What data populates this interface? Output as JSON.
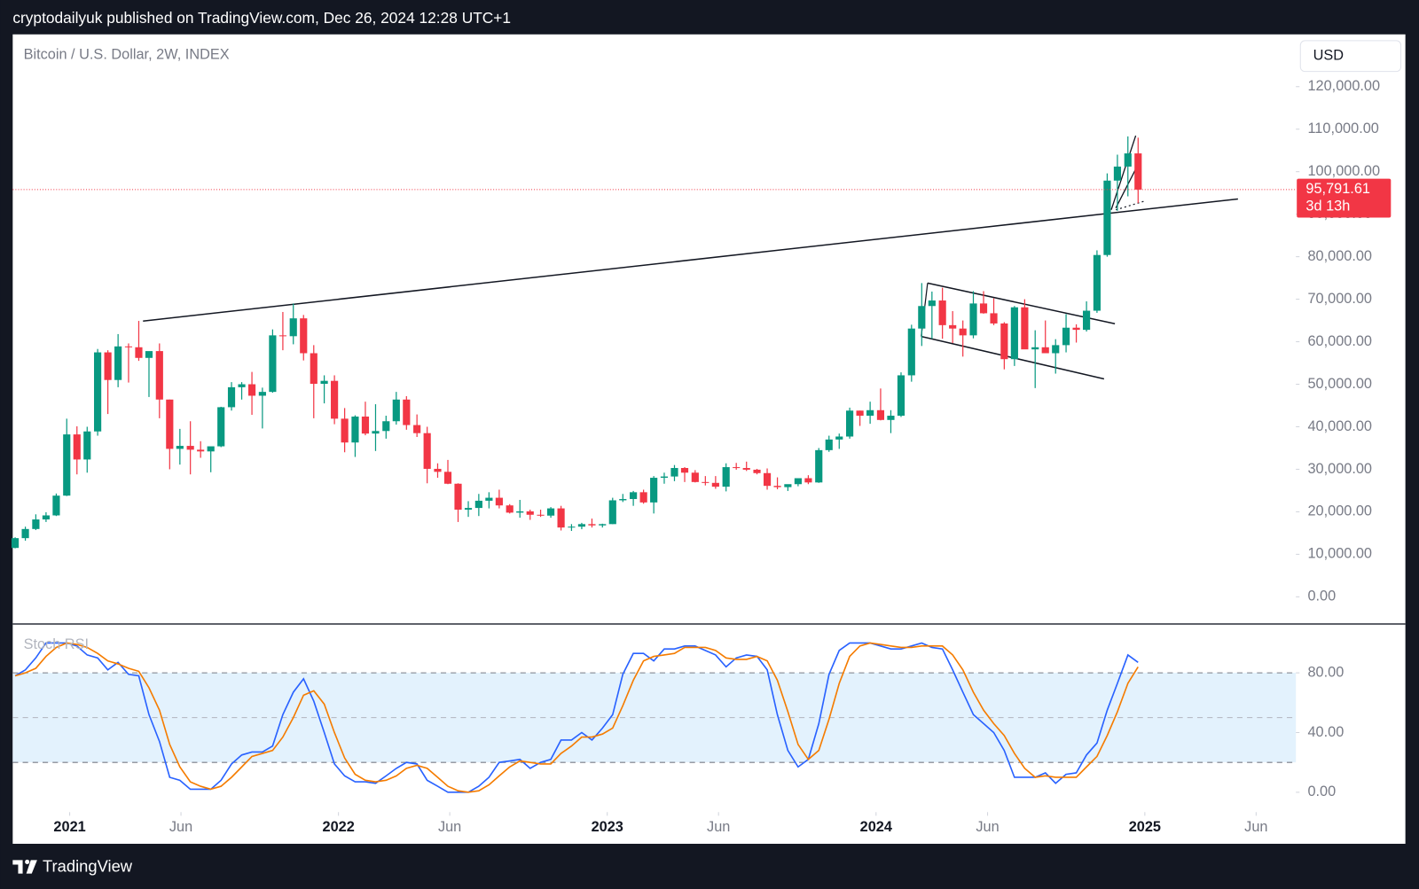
{
  "header": {
    "text": "cryptodailyuk published on TradingView.com, Dec 26, 2024 12:28 UTC+1"
  },
  "footer": {
    "brand": "TradingView"
  },
  "chart_data": [
    {
      "type": "candlestick",
      "title": "Bitcoin / U.S. Dollar, 2W, INDEX",
      "currency": "USD",
      "up_color": "#089981",
      "down_color": "#f23645",
      "last_price_label": "95,791.61",
      "countdown": "3d 13h",
      "xlim": [
        2020.788,
        2025.562
      ],
      "ylim": [
        -6400,
        132300
      ],
      "yticks": [
        {
          "value": 0,
          "label": "0.00"
        },
        {
          "value": 10000,
          "label": "10,000.00"
        },
        {
          "value": 20000,
          "label": "20,000.00"
        },
        {
          "value": 30000,
          "label": "30,000.00"
        },
        {
          "value": 40000,
          "label": "40,000.00"
        },
        {
          "value": 50000,
          "label": "50,000.00"
        },
        {
          "value": 60000,
          "label": "60,000.00"
        },
        {
          "value": 70000,
          "label": "70,000.00"
        },
        {
          "value": 80000,
          "label": "80,000.00"
        },
        {
          "value": 90000,
          "label": "90,000.00"
        },
        {
          "value": 100000,
          "label": "100,000.00"
        },
        {
          "value": 110000,
          "label": "110,000.00"
        },
        {
          "value": 120000,
          "label": "120,000.00"
        }
      ],
      "grid": false,
      "x": [
        2020.797,
        2020.835,
        2020.874,
        2020.912,
        2020.95,
        2020.989,
        2021.027,
        2021.065,
        2021.104,
        2021.142,
        2021.18,
        2021.219,
        2021.257,
        2021.295,
        2021.334,
        2021.372,
        2021.41,
        2021.449,
        2021.487,
        2021.525,
        2021.563,
        2021.602,
        2021.64,
        2021.678,
        2021.717,
        2021.755,
        2021.793,
        2021.832,
        2021.87,
        2021.908,
        2021.947,
        2021.985,
        2022.023,
        2022.062,
        2022.1,
        2022.138,
        2022.177,
        2022.215,
        2022.253,
        2022.292,
        2022.33,
        2022.369,
        2022.407,
        2022.445,
        2022.483,
        2022.522,
        2022.56,
        2022.598,
        2022.637,
        2022.675,
        2022.713,
        2022.752,
        2022.79,
        2022.828,
        2022.867,
        2022.905,
        2022.943,
        2022.982,
        2023.02,
        2023.058,
        2023.097,
        2023.135,
        2023.173,
        2023.212,
        2023.25,
        2023.288,
        2023.327,
        2023.365,
        2023.403,
        2023.442,
        2023.48,
        2023.518,
        2023.557,
        2023.595,
        2023.633,
        2023.672,
        2023.71,
        2023.748,
        2023.787,
        2023.825,
        2023.863,
        2023.902,
        2023.94,
        2023.978,
        2024.017,
        2024.055,
        2024.093,
        2024.132,
        2024.17,
        2024.208,
        2024.247,
        2024.285,
        2024.323,
        2024.362,
        2024.4,
        2024.438,
        2024.477,
        2024.515,
        2024.553,
        2024.592,
        2024.63,
        2024.668,
        2024.707,
        2024.745,
        2024.783,
        2024.822,
        2024.86,
        2024.898,
        2024.937,
        2024.975
      ],
      "open": [
        11500,
        13800,
        15950,
        18200,
        19150,
        23800,
        38200,
        32300,
        38900,
        57500,
        51000,
        58900,
        58700,
        56200,
        57800,
        46400,
        34800,
        35500,
        34600,
        34200,
        35400,
        44600,
        49300,
        50000,
        47300,
        48200,
        61500,
        61300,
        65500,
        57300,
        50100,
        50800,
        41900,
        36300,
        42400,
        38400,
        39000,
        41300,
        46400,
        40400,
        38500,
        30100,
        29400,
        26600,
        20500,
        20900,
        22600,
        23300,
        21500,
        19800,
        20100,
        19300,
        19100,
        20800,
        16300,
        16500,
        17100,
        16800,
        17100,
        22700,
        23000,
        24600,
        22200,
        28000,
        28300,
        30300,
        29200,
        27000,
        26800,
        25900,
        30500,
        30300,
        29900,
        29100,
        26100,
        25800,
        26500,
        27900,
        26900,
        34500,
        37000,
        37700,
        43800,
        42600,
        43900,
        41600,
        42600,
        52100,
        63100,
        68400,
        69700,
        63900,
        63100,
        61500,
        69000,
        66700,
        64300,
        55900,
        68100,
        58200,
        58700,
        57300,
        59200,
        63300,
        62800,
        67300,
        80400,
        97900,
        101200,
        104300
      ],
      "high": [
        14000,
        16500,
        19400,
        19900,
        24300,
        41900,
        40100,
        40000,
        58300,
        58000,
        61800,
        59600,
        64900,
        57200,
        59600,
        46400,
        39500,
        41300,
        36600,
        35000,
        44700,
        50500,
        50500,
        52900,
        49200,
        62900,
        67000,
        69000,
        66300,
        59200,
        52100,
        52100,
        44400,
        42700,
        45900,
        45300,
        42600,
        48200,
        47200,
        42900,
        40000,
        31400,
        32200,
        26700,
        22500,
        24200,
        24600,
        25200,
        21800,
        22800,
        20500,
        20500,
        21100,
        21400,
        17100,
        17400,
        18400,
        17200,
        23300,
        24200,
        24900,
        25200,
        28400,
        29200,
        31000,
        30500,
        29800,
        28400,
        28400,
        31400,
        31500,
        31800,
        30100,
        30200,
        28100,
        26400,
        27500,
        28600,
        35000,
        37900,
        38400,
        44500,
        43800,
        45900,
        49000,
        43900,
        52800,
        64000,
        73800,
        71800,
        72700,
        67200,
        65000,
        71900,
        71900,
        70200,
        64600,
        68400,
        70000,
        62700,
        65000,
        60600,
        66500,
        64100,
        69500,
        81500,
        99600,
        104000,
        108300,
        108000
      ],
      "low": [
        11400,
        13200,
        15700,
        17600,
        19000,
        23700,
        28800,
        29200,
        37900,
        43000,
        49300,
        50400,
        55500,
        47000,
        42000,
        30000,
        31100,
        28800,
        32700,
        29300,
        35200,
        43800,
        46400,
        42800,
        39600,
        48000,
        58000,
        59400,
        55600,
        42000,
        45500,
        40600,
        34000,
        32900,
        38000,
        34300,
        37200,
        40500,
        39300,
        37600,
        26700,
        28000,
        26500,
        17600,
        18800,
        19000,
        20800,
        20800,
        19600,
        18600,
        18100,
        18800,
        18600,
        15600,
        15500,
        15900,
        16300,
        16300,
        17100,
        22300,
        21400,
        21900,
        19600,
        26600,
        27200,
        27000,
        26900,
        26200,
        25400,
        24800,
        29900,
        29600,
        28800,
        25200,
        25300,
        24900,
        26000,
        26500,
        26800,
        34100,
        34800,
        37200,
        40200,
        40700,
        41500,
        38500,
        42300,
        50600,
        59000,
        60700,
        60700,
        59700,
        56500,
        60800,
        66600,
        63900,
        53500,
        54300,
        58300,
        49100,
        57800,
        52500,
        57500,
        59800,
        62400,
        66800,
        80000,
        90800,
        94200,
        92600
      ],
      "close": [
        13800,
        15950,
        18200,
        19150,
        23800,
        38200,
        32300,
        38900,
        57500,
        51000,
        58900,
        58700,
        56200,
        57800,
        46400,
        34800,
        35500,
        34600,
        34200,
        35400,
        44600,
        49300,
        50000,
        47300,
        48200,
        61500,
        61300,
        65500,
        57300,
        50100,
        50800,
        41900,
        36300,
        42400,
        38400,
        39000,
        41300,
        46400,
        40400,
        38500,
        30100,
        29400,
        26600,
        20500,
        20900,
        22600,
        23300,
        21500,
        19800,
        20100,
        19300,
        19100,
        20800,
        16300,
        16500,
        17100,
        16800,
        17100,
        22700,
        23000,
        24600,
        22200,
        28000,
        28300,
        30300,
        29200,
        27000,
        26800,
        25900,
        30500,
        30300,
        29900,
        29100,
        26100,
        25800,
        26500,
        27900,
        26900,
        34500,
        37000,
        37700,
        43800,
        42600,
        43900,
        41600,
        42600,
        52100,
        63100,
        68400,
        69700,
        63900,
        63100,
        61500,
        69000,
        66700,
        64300,
        55900,
        68100,
        58200,
        58700,
        57300,
        59200,
        63300,
        62800,
        67300,
        80400,
        97900,
        101200,
        104300,
        95791.61
      ]
    },
    {
      "type": "line",
      "title": "Stoch RSI",
      "xlim": [
        2020.788,
        2025.562
      ],
      "xticks": [
        2021,
        {
          "value": 2021.414,
          "label": "Jun"
        },
        2022,
        {
          "value": 2022.414,
          "label": "Jun"
        },
        2023,
        {
          "value": 2023.414,
          "label": "Jun"
        },
        2024,
        {
          "value": 2024.415,
          "label": "Jun"
        },
        2025,
        {
          "value": 2025.414,
          "label": "Jun"
        }
      ],
      "ylim": [
        -13.3,
        112.7
      ],
      "yticks": [
        {
          "value": 0,
          "label": "0.00"
        },
        {
          "value": 40,
          "label": "40.00"
        },
        {
          "value": 80,
          "label": "80.00"
        }
      ],
      "band": [
        20,
        80
      ],
      "midline": 50,
      "band_color": "#e3f2fd",
      "series": [
        {
          "color": "#2962ff",
          "values": [
            78,
            82,
            90,
            100,
            100,
            100,
            98,
            92,
            90,
            82,
            87,
            79,
            78,
            52,
            34,
            10,
            8,
            2,
            2,
            2,
            8,
            19,
            25,
            27,
            27,
            31,
            52,
            67,
            76,
            61,
            40,
            19,
            11,
            7,
            7,
            6,
            11,
            16,
            20,
            19,
            8,
            4,
            0,
            0,
            0,
            4,
            10,
            20,
            21,
            22,
            16,
            20,
            22,
            35,
            35,
            40,
            35,
            43,
            52,
            79,
            93,
            93,
            88,
            96,
            96,
            98,
            98,
            95,
            92,
            84,
            90,
            92,
            91,
            82,
            52,
            28,
            17,
            22,
            46,
            79,
            95,
            100,
            100,
            100,
            98,
            96,
            96,
            98,
            100,
            97,
            96,
            82,
            67,
            52,
            46,
            40,
            28,
            10,
            10,
            10,
            13,
            6,
            12,
            13,
            25,
            33,
            55,
            73,
            92,
            87
          ]
        },
        {
          "color": "#f57c00",
          "values": [
            78,
            80,
            83,
            91,
            97,
            100,
            99,
            97,
            93,
            88,
            86,
            83,
            81,
            70,
            55,
            32,
            17,
            7,
            4,
            2,
            4,
            10,
            17,
            24,
            26,
            28,
            37,
            50,
            65,
            68,
            59,
            40,
            23,
            12,
            8,
            7,
            8,
            11,
            16,
            18,
            16,
            10,
            4,
            1,
            0,
            1,
            5,
            11,
            17,
            21,
            20,
            19,
            19,
            26,
            31,
            37,
            37,
            39,
            43,
            58,
            75,
            88,
            91,
            92,
            93,
            97,
            97,
            97,
            95,
            90,
            89,
            89,
            91,
            88,
            75,
            54,
            32,
            22,
            28,
            49,
            73,
            91,
            98,
            100,
            99,
            98,
            97,
            97,
            98,
            98,
            98,
            92,
            82,
            67,
            55,
            46,
            38,
            26,
            16,
            10,
            11,
            10,
            10,
            10,
            17,
            24,
            38,
            54,
            73,
            84
          ]
        }
      ]
    }
  ]
}
